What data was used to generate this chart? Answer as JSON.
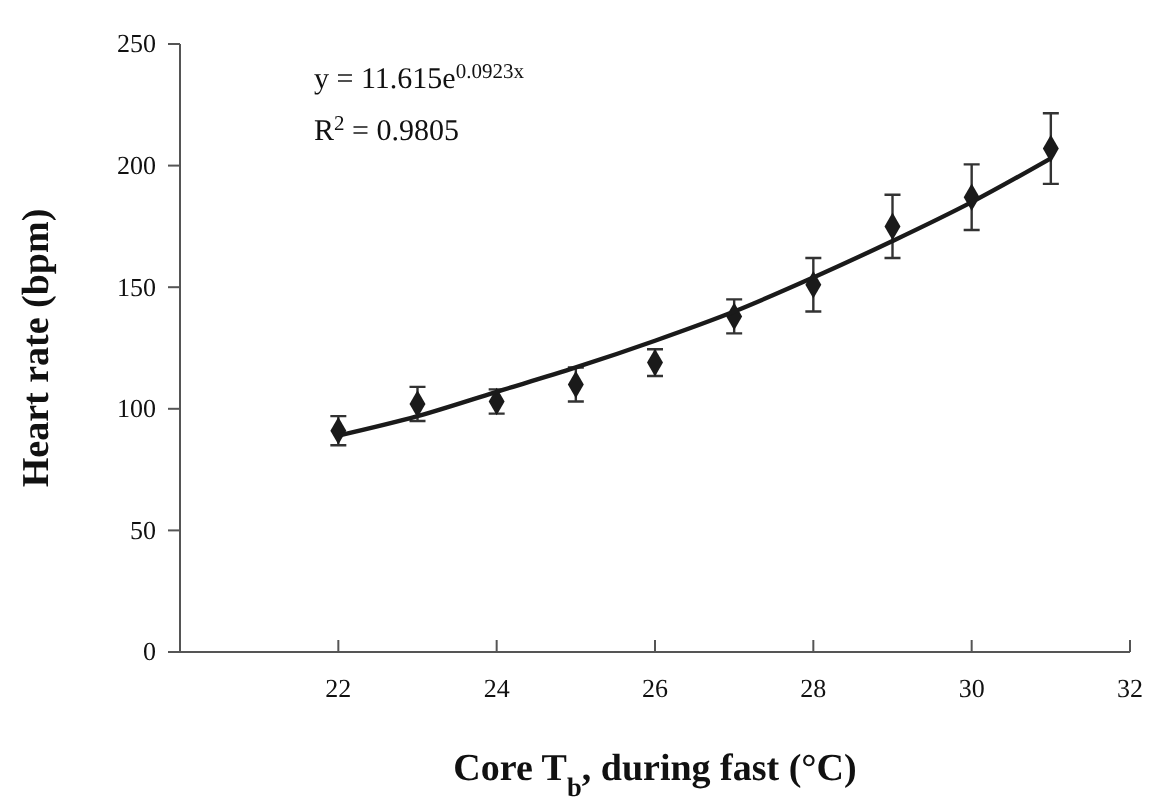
{
  "chart_data": {
    "type": "scatter",
    "xlabel": "Core T$_{b}$, during fast (°C)",
    "ylabel": "Heart rate (bpm)",
    "annotations": [
      "y = 11.615e$^{0.0923x}$",
      "R$^{2}$ = 0.9805"
    ],
    "xlim": [
      20,
      32
    ],
    "xticks": [
      22,
      24,
      26,
      28,
      30,
      32
    ],
    "ylim": [
      0,
      250
    ],
    "yticks": [
      0,
      50,
      100,
      150,
      200,
      250
    ],
    "grid": false,
    "series": [
      {
        "color": "#1a1a1a",
        "marker": "diamond",
        "x": [
          22,
          23,
          24,
          25,
          26,
          27,
          28,
          29,
          30,
          31
        ],
        "values": [
          91,
          102,
          103,
          110,
          119,
          138,
          151,
          175,
          187,
          207
        ],
        "errors": [
          6,
          7,
          5,
          7,
          5.5,
          7,
          11,
          13,
          13.5,
          14.5
        ]
      },
      {
        "type": "line",
        "color": "#1a1a1a",
        "line_style": "solid",
        "x": [
          22,
          23,
          24,
          25,
          26,
          27,
          28,
          29,
          30,
          31
        ],
        "values": [
          89,
          97,
          107,
          117,
          128,
          140,
          154,
          169,
          185,
          203
        ]
      }
    ]
  }
}
